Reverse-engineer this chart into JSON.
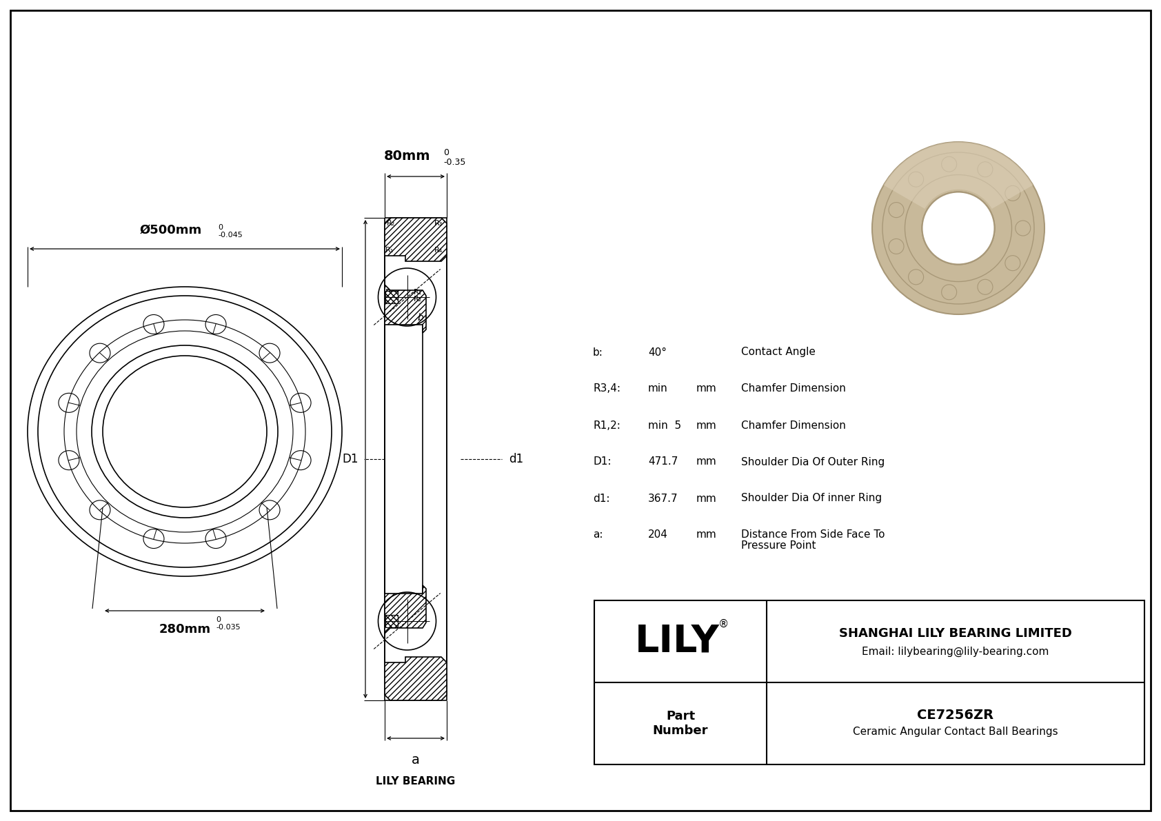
{
  "background_color": "#ffffff",
  "drawing_color": "#000000",
  "dim_outer": "Ø500mm",
  "dim_outer_tol_upper": "0",
  "dim_outer_tol_lower": "-0.045",
  "dim_inner": "280mm",
  "dim_inner_tol_upper": "0",
  "dim_inner_tol_lower": "-0.035",
  "dim_width": "80mm",
  "dim_width_tol_upper": "0",
  "dim_width_tol_lower": "-0.35",
  "specs": [
    {
      "param": "b:",
      "value": "40°",
      "unit": "",
      "desc": "Contact Angle"
    },
    {
      "param": "R3,4:",
      "value": "min",
      "unit": "mm",
      "desc": "Chamfer Dimension"
    },
    {
      "param": "R1,2:",
      "value": "min  5",
      "unit": "mm",
      "desc": "Chamfer Dimension"
    },
    {
      "param": "D1:",
      "value": "471.7",
      "unit": "mm",
      "desc": "Shoulder Dia Of Outer Ring"
    },
    {
      "param": "d1:",
      "value": "367.7",
      "unit": "mm",
      "desc": "Shoulder Dia Of inner Ring"
    },
    {
      "param": "a:",
      "value": "204",
      "unit": "mm",
      "desc": "Distance From Side Face To\nPressure Point"
    }
  ],
  "lily_name": "LILY",
  "company": "SHANGHAI LILY BEARING LIMITED",
  "email": "Email: lilybearing@lily-bearing.com",
  "part_label": "Part\nNumber",
  "part_number": "CE7256ZR",
  "part_desc": "Ceramic Angular Contact Ball Bearings",
  "lily_bearing_label": "LILY BEARING",
  "dim_a_label": "a",
  "D1_label": "D1",
  "d1_label": "d1",
  "bearing_color": "#C8B99A",
  "bearing_shadow": "#A89878",
  "bearing_light": "#DDD0B8"
}
